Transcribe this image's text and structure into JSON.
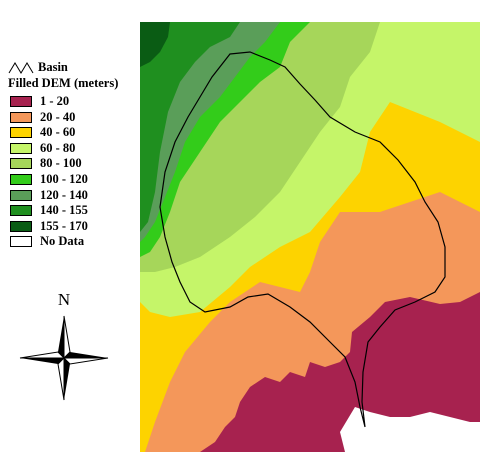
{
  "legend": {
    "basin_label": "Basin",
    "title": "Filled DEM (meters)",
    "classes": [
      {
        "label": "1 - 20",
        "color": "#a7224f"
      },
      {
        "label": "20 - 40",
        "color": "#f4975a"
      },
      {
        "label": "40 - 60",
        "color": "#fdd300"
      },
      {
        "label": "60 - 80",
        "color": "#c5f569"
      },
      {
        "label": "80 - 100",
        "color": "#a6d65a"
      },
      {
        "label": "100 - 120",
        "color": "#33cc1a"
      },
      {
        "label": "120 - 140",
        "color": "#5a9e59"
      },
      {
        "label": "140 - 155",
        "color": "#1f8f1f"
      },
      {
        "label": "155 - 170",
        "color": "#0a5c14"
      },
      {
        "label": "No Data",
        "color": "#ffffff"
      }
    ]
  },
  "north_arrow": {
    "label": "N",
    "icon": "compass-rose-icon"
  }
}
